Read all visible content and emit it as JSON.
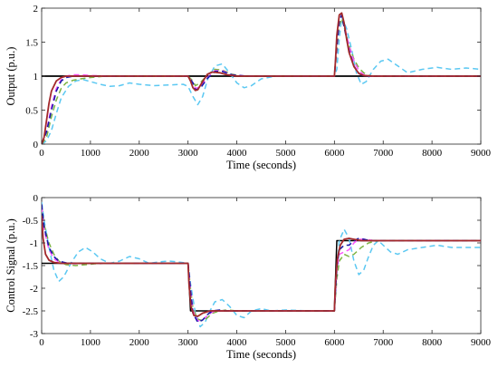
{
  "chart_data": [
    {
      "type": "line",
      "xlabel": "Time (seconds)",
      "ylabel": "Output (p.u.)",
      "xlim": [
        0,
        9000
      ],
      "ylim": [
        0,
        2
      ],
      "xticks": [
        0,
        1000,
        2000,
        3000,
        4000,
        5000,
        6000,
        7000,
        8000,
        9000
      ],
      "yticks": [
        0,
        0.5,
        1,
        1.5,
        2
      ],
      "xtick_labels": [
        "0",
        "1000",
        "2000",
        "3000",
        "4000",
        "5000",
        "6000",
        "7000",
        "8000",
        "9000"
      ],
      "ytick_labels": [
        "0",
        "0.5",
        "1",
        "1.5",
        "2"
      ],
      "grid": false,
      "series": [
        {
          "color": "#000000",
          "style": "solid",
          "width": 1.8,
          "x": [
            0,
            9000
          ],
          "y": [
            1,
            1
          ]
        },
        {
          "color": "#5bc8f2",
          "style": "dashed",
          "width": 1.5,
          "x": [
            0,
            100,
            200,
            300,
            400,
            550,
            700,
            850,
            1000,
            1200,
            1400,
            1600,
            1800,
            2000,
            2300,
            2600,
            2900,
            3000,
            3100,
            3200,
            3300,
            3400,
            3550,
            3700,
            3850,
            4000,
            4150,
            4300,
            4500,
            4800,
            5100,
            5400,
            5700,
            6000,
            6050,
            6100,
            6150,
            6250,
            6350,
            6450,
            6550,
            6650,
            6800,
            6950,
            7100,
            7300,
            7500,
            7800,
            8100,
            8400,
            8700,
            9000
          ],
          "y": [
            0,
            0.05,
            0.2,
            0.45,
            0.68,
            0.85,
            0.93,
            0.95,
            0.92,
            0.88,
            0.85,
            0.86,
            0.9,
            0.88,
            0.86,
            0.87,
            0.88,
            0.85,
            0.7,
            0.58,
            0.7,
            0.95,
            1.15,
            1.18,
            1.05,
            0.9,
            0.83,
            0.86,
            0.96,
            1.0,
            1.0,
            1.0,
            1.0,
            1.0,
            1.1,
            1.55,
            1.87,
            1.7,
            1.4,
            1.05,
            0.88,
            0.92,
            1.1,
            1.22,
            1.25,
            1.15,
            1.05,
            1.1,
            1.13,
            1.1,
            1.12,
            1.1
          ]
        },
        {
          "color": "#7cb342",
          "style": "dashed",
          "width": 1.5,
          "x": [
            0,
            100,
            200,
            300,
            400,
            500,
            650,
            800,
            1000,
            1300,
            1600,
            2000,
            2500,
            3000,
            3100,
            3150,
            3250,
            3400,
            3550,
            3700,
            3900,
            4100,
            4400,
            4800,
            5500,
            6000,
            6050,
            6100,
            6150,
            6200,
            6300,
            6400,
            6500,
            6600,
            6700,
            6800,
            7000,
            7500,
            9000
          ],
          "y": [
            0,
            0.1,
            0.4,
            0.65,
            0.82,
            0.9,
            0.94,
            0.96,
            0.98,
            1.0,
            1.0,
            1.0,
            1.0,
            1.0,
            0.93,
            0.86,
            0.9,
            1.02,
            1.1,
            1.09,
            1.03,
            1.0,
            1.0,
            1.0,
            1.0,
            1.0,
            1.35,
            1.75,
            1.85,
            1.72,
            1.45,
            1.25,
            1.12,
            1.05,
            1.01,
            1.0,
            1.0,
            1.0,
            1.0
          ]
        },
        {
          "color": "#ff55ff",
          "style": "dashed",
          "width": 1.5,
          "x": [
            0,
            100,
            200,
            300,
            400,
            500,
            650,
            800,
            1000,
            1400,
            2000,
            3000,
            3100,
            3150,
            3250,
            3400,
            3550,
            3700,
            3900,
            4200,
            5000,
            6000,
            6050,
            6100,
            6150,
            6200,
            6300,
            6400,
            6500,
            6600,
            6700,
            6900,
            7500,
            9000
          ],
          "y": [
            0,
            0.2,
            0.55,
            0.82,
            0.95,
            1.0,
            1.02,
            1.02,
            1.01,
            1.0,
            1.0,
            1.0,
            0.9,
            0.82,
            0.84,
            0.98,
            1.08,
            1.08,
            1.02,
            1.0,
            1.0,
            1.0,
            1.4,
            1.8,
            1.9,
            1.75,
            1.45,
            1.22,
            1.08,
            1.02,
            1.0,
            1.0,
            1.0,
            1.0
          ]
        },
        {
          "color": "#1a1aa8",
          "style": "dashed",
          "width": 1.6,
          "x": [
            0,
            100,
            200,
            300,
            400,
            500,
            650,
            800,
            1000,
            1400,
            2000,
            3000,
            3100,
            3150,
            3250,
            3400,
            3550,
            3700,
            3900,
            4200,
            5000,
            6000,
            6050,
            6100,
            6150,
            6200,
            6300,
            6400,
            6500,
            6600,
            6700,
            6900,
            7500,
            9000
          ],
          "y": [
            0,
            0.18,
            0.5,
            0.78,
            0.93,
            0.98,
            1.0,
            1.0,
            1.0,
            1.0,
            1.0,
            1.0,
            0.9,
            0.8,
            0.82,
            0.97,
            1.07,
            1.07,
            1.02,
            1.0,
            1.0,
            1.0,
            1.45,
            1.82,
            1.9,
            1.72,
            1.38,
            1.15,
            1.04,
            1.0,
            1.0,
            1.0,
            1.0,
            1.0
          ]
        },
        {
          "color": "#a3292c",
          "style": "solid",
          "width": 1.8,
          "x": [
            0,
            50,
            100,
            150,
            200,
            300,
            400,
            500,
            650,
            800,
            1000,
            1400,
            2000,
            3000,
            3050,
            3100,
            3150,
            3200,
            3300,
            3400,
            3500,
            3650,
            3800,
            4000,
            4400,
            5000,
            6000,
            6020,
            6050,
            6100,
            6150,
            6200,
            6250,
            6300,
            6400,
            6500,
            6600,
            6800,
            7500,
            9000
          ],
          "y": [
            0,
            0.1,
            0.35,
            0.6,
            0.78,
            0.93,
            0.98,
            1.0,
            1.0,
            1.0,
            1.0,
            1.0,
            1.0,
            1.0,
            0.93,
            0.83,
            0.79,
            0.8,
            0.92,
            1.03,
            1.06,
            1.05,
            1.02,
            1.0,
            1.0,
            1.0,
            1.0,
            1.2,
            1.6,
            1.9,
            1.93,
            1.78,
            1.55,
            1.35,
            1.14,
            1.04,
            1.01,
            1.0,
            1.0,
            1.0
          ]
        }
      ]
    },
    {
      "type": "line",
      "xlabel": "Time (seconds)",
      "ylabel": "Control Signal (p.u.)",
      "xlim": [
        0,
        9000
      ],
      "ylim": [
        -3,
        0
      ],
      "xticks": [
        0,
        1000,
        2000,
        3000,
        4000,
        5000,
        6000,
        7000,
        8000,
        9000
      ],
      "yticks": [
        -3,
        -2.5,
        -2,
        -1.5,
        -1,
        -0.5,
        0
      ],
      "xtick_labels": [
        "0",
        "1000",
        "2000",
        "3000",
        "4000",
        "5000",
        "6000",
        "7000",
        "8000",
        "9000"
      ],
      "ytick_labels": [
        "-3",
        "-2.5",
        "-2",
        "-1.5",
        "-1",
        "-0.5",
        "0"
      ],
      "grid": false,
      "series": [
        {
          "color": "#000000",
          "style": "solid",
          "width": 1.5,
          "x": [
            0,
            3000,
            3050,
            6000,
            6050,
            9000
          ],
          "y": [
            -1.45,
            -1.45,
            -2.5,
            -2.5,
            -0.95,
            -0.95
          ]
        },
        {
          "color": "#5bc8f2",
          "style": "dashed",
          "width": 1.5,
          "x": [
            0,
            50,
            150,
            250,
            350,
            450,
            600,
            750,
            900,
            1050,
            1200,
            1400,
            1600,
            1800,
            2000,
            2200,
            2400,
            2600,
            2800,
            3000,
            3050,
            3150,
            3250,
            3350,
            3450,
            3550,
            3700,
            3850,
            4000,
            4150,
            4300,
            4500,
            4700,
            5000,
            5500,
            6000,
            6050,
            6100,
            6200,
            6300,
            6400,
            6500,
            6600,
            6700,
            6800,
            6900,
            7000,
            7150,
            7300,
            7500,
            7800,
            8100,
            8400,
            8700,
            9000
          ],
          "y": [
            -0.1,
            -0.5,
            -1.1,
            -1.6,
            -1.85,
            -1.75,
            -1.45,
            -1.2,
            -1.1,
            -1.2,
            -1.35,
            -1.45,
            -1.4,
            -1.3,
            -1.35,
            -1.45,
            -1.42,
            -1.4,
            -1.42,
            -1.45,
            -1.9,
            -2.55,
            -2.85,
            -2.75,
            -2.5,
            -2.3,
            -2.25,
            -2.4,
            -2.6,
            -2.65,
            -2.5,
            -2.45,
            -2.5,
            -2.48,
            -2.5,
            -2.5,
            -1.6,
            -0.95,
            -0.7,
            -0.9,
            -1.4,
            -1.7,
            -1.6,
            -1.3,
            -1.05,
            -0.95,
            -1.05,
            -1.2,
            -1.25,
            -1.15,
            -1.1,
            -1.05,
            -1.1,
            -1.1,
            -1.1
          ]
        },
        {
          "color": "#7cb342",
          "style": "dashed",
          "width": 1.5,
          "x": [
            0,
            50,
            150,
            250,
            350,
            500,
            700,
            900,
            1100,
            1400,
            2000,
            3000,
            3050,
            3100,
            3200,
            3300,
            3400,
            3500,
            3650,
            3800,
            4000,
            4400,
            5000,
            6000,
            6050,
            6100,
            6200,
            6300,
            6400,
            6550,
            6700,
            6850,
            7000,
            7500,
            9000
          ],
          "y": [
            -0.2,
            -0.6,
            -1.0,
            -1.25,
            -1.4,
            -1.48,
            -1.5,
            -1.48,
            -1.46,
            -1.45,
            -1.45,
            -1.45,
            -2.0,
            -2.45,
            -2.68,
            -2.72,
            -2.65,
            -2.55,
            -2.5,
            -2.48,
            -2.5,
            -2.5,
            -2.5,
            -2.5,
            -1.8,
            -1.4,
            -1.25,
            -1.3,
            -1.25,
            -1.1,
            -1.0,
            -0.96,
            -0.95,
            -0.95,
            -0.95
          ]
        },
        {
          "color": "#ff55ff",
          "style": "dashed",
          "width": 1.5,
          "x": [
            0,
            50,
            150,
            250,
            350,
            500,
            700,
            900,
            1200,
            2000,
            3000,
            3050,
            3100,
            3200,
            3300,
            3400,
            3500,
            3650,
            3800,
            4200,
            5000,
            6000,
            6050,
            6100,
            6200,
            6300,
            6400,
            6500,
            6650,
            6800,
            7000,
            7500,
            9000
          ],
          "y": [
            -0.2,
            -0.7,
            -1.15,
            -1.35,
            -1.42,
            -1.45,
            -1.46,
            -1.45,
            -1.45,
            -1.45,
            -1.45,
            -2.0,
            -2.5,
            -2.72,
            -2.7,
            -2.6,
            -2.52,
            -2.5,
            -2.5,
            -2.5,
            -2.5,
            -2.5,
            -1.6,
            -1.25,
            -1.2,
            -1.15,
            -1.0,
            -0.92,
            -0.92,
            -0.95,
            -0.95,
            -0.95,
            -0.95
          ]
        },
        {
          "color": "#1a1aa8",
          "style": "dashed",
          "width": 1.6,
          "x": [
            0,
            50,
            150,
            250,
            350,
            500,
            700,
            900,
            1200,
            2000,
            3000,
            3050,
            3100,
            3200,
            3300,
            3400,
            3500,
            3650,
            3800,
            4200,
            5000,
            6000,
            6050,
            6100,
            6200,
            6300,
            6400,
            6500,
            6650,
            6800,
            7000,
            7500,
            9000
          ],
          "y": [
            -0.15,
            -0.65,
            -1.1,
            -1.3,
            -1.4,
            -1.44,
            -1.45,
            -1.45,
            -1.45,
            -1.45,
            -1.45,
            -2.05,
            -2.55,
            -2.75,
            -2.7,
            -2.58,
            -2.5,
            -2.48,
            -2.5,
            -2.5,
            -2.5,
            -2.5,
            -1.55,
            -1.15,
            -1.05,
            -1.05,
            -0.95,
            -0.9,
            -0.93,
            -0.95,
            -0.95,
            -0.95,
            -0.95
          ]
        },
        {
          "color": "#a3292c",
          "style": "solid",
          "width": 1.8,
          "x": [
            0,
            30,
            80,
            150,
            250,
            400,
            600,
            900,
            1500,
            3000,
            3020,
            3060,
            3120,
            3200,
            3300,
            3450,
            3600,
            4000,
            5000,
            6000,
            6020,
            6060,
            6120,
            6200,
            6300,
            6400,
            6550,
            6700,
            7000,
            9000
          ],
          "y": [
            -0.4,
            -0.9,
            -1.25,
            -1.38,
            -1.43,
            -1.45,
            -1.45,
            -1.45,
            -1.45,
            -1.45,
            -1.9,
            -2.4,
            -2.6,
            -2.62,
            -2.55,
            -2.5,
            -2.5,
            -2.5,
            -2.5,
            -2.5,
            -1.9,
            -1.35,
            -1.05,
            -0.92,
            -0.9,
            -0.92,
            -0.95,
            -0.95,
            -0.95,
            -0.95
          ]
        }
      ]
    }
  ]
}
